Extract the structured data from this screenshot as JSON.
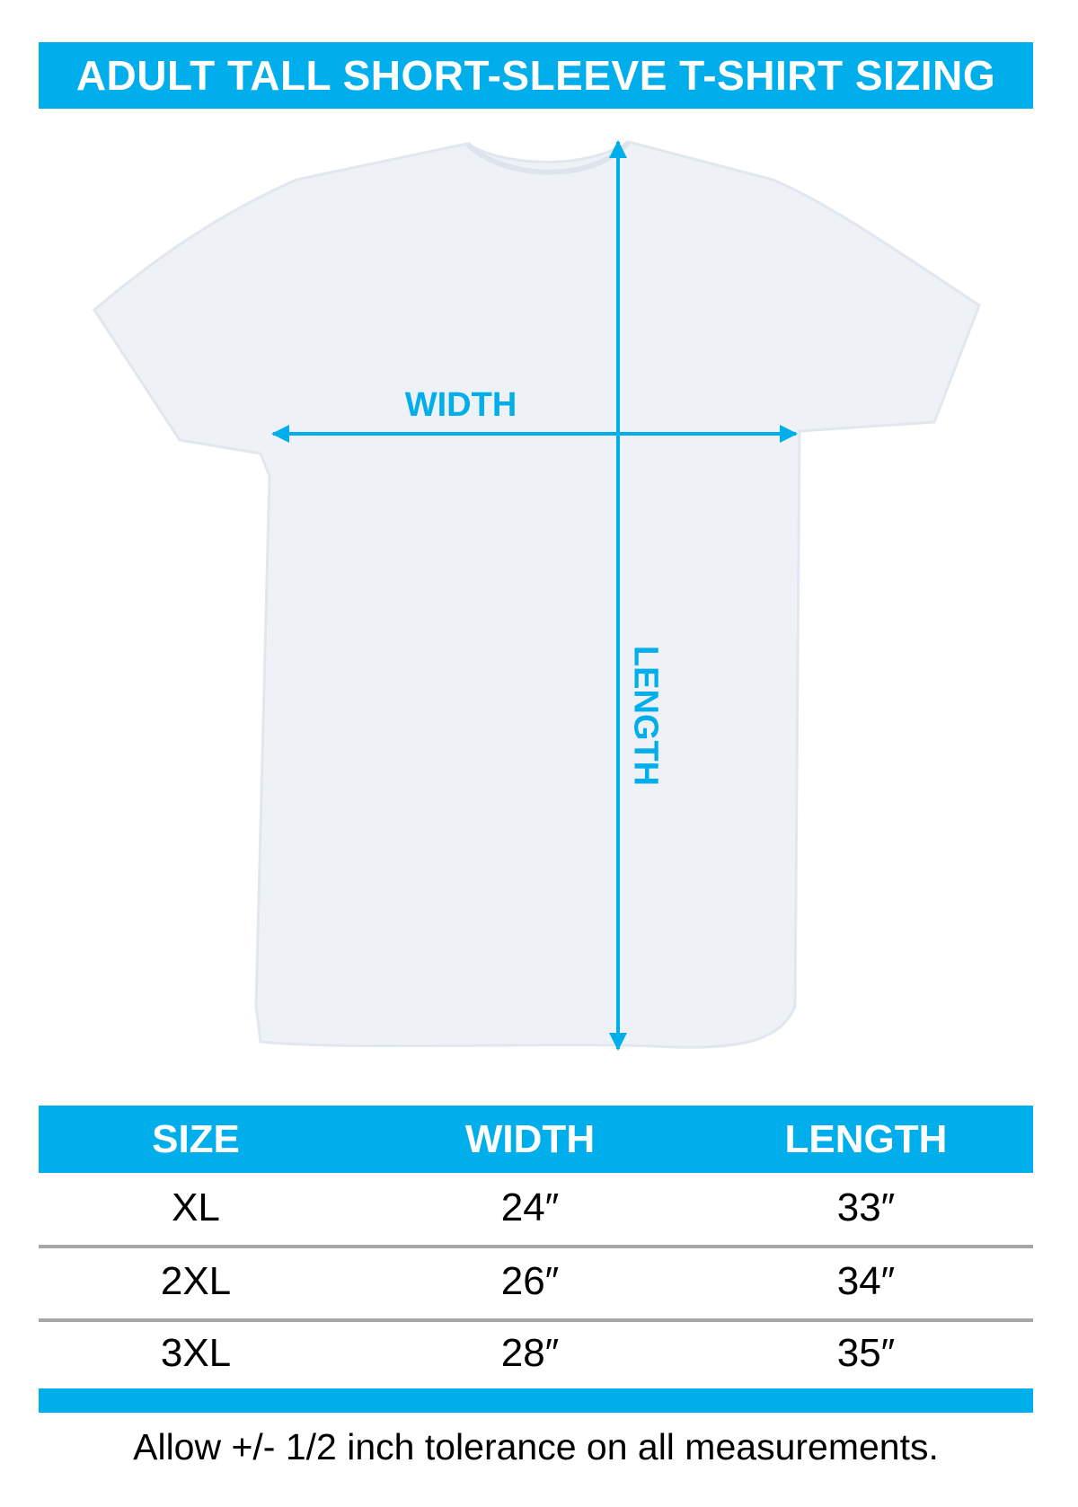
{
  "title": "ADULT TALL SHORT-SLEEVE T-SHIRT SIZING",
  "diagram": {
    "width_label": "WIDTH",
    "length_label": "LENGTH",
    "accent_color": "#00aeeb",
    "shirt_color": "#eef2f6"
  },
  "table": {
    "headers": [
      "SIZE",
      "WIDTH",
      "LENGTH"
    ],
    "rows": [
      [
        "XL",
        "24″",
        "33″"
      ],
      [
        "2XL",
        "26″",
        "34″"
      ],
      [
        "3XL",
        "28″",
        "35″"
      ]
    ]
  },
  "footnote": "Allow +/- 1/2 inch tolerance on all measurements."
}
